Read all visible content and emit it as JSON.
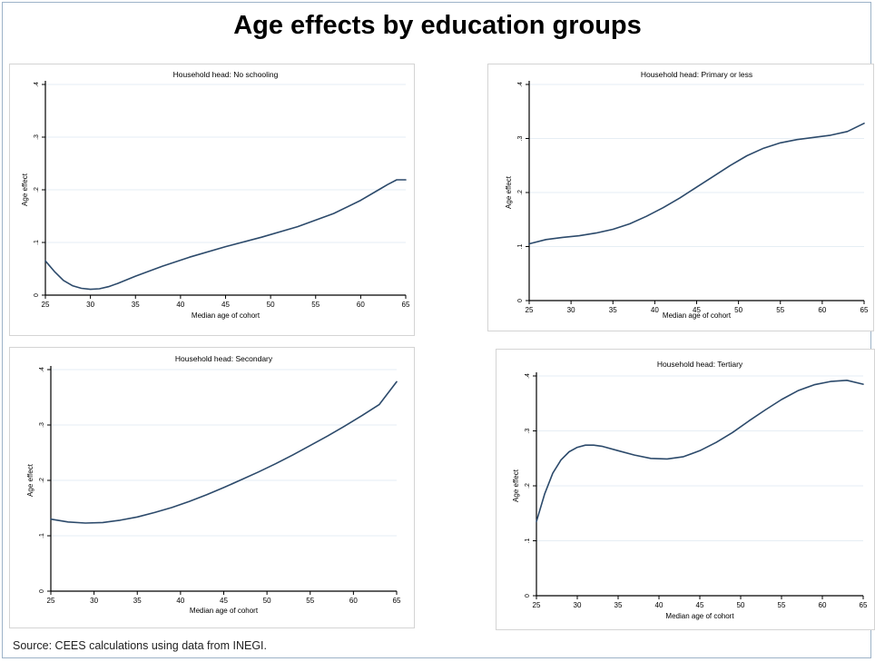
{
  "title": "Age effects by education groups",
  "source": "Source:  CEES calculations using data  from INEGI.",
  "colors": {
    "line": "#2c4a6b",
    "grid": "#e6eef4",
    "axis": "#000000"
  },
  "chart_data": [
    {
      "type": "line",
      "title": "Household head: No schooling",
      "xlabel": "Median age of cohort",
      "ylabel": "Age effect",
      "xlim": [
        25,
        65
      ],
      "ylim": [
        0,
        0.4
      ],
      "xticks": [
        "25",
        "30",
        "35",
        "40",
        "45",
        "50",
        "55",
        "60",
        "65"
      ],
      "yticks": [
        "0",
        ".1",
        ".2",
        ".3",
        ".4"
      ],
      "grid": true,
      "series": [
        {
          "x": [
            25,
            26,
            27,
            28,
            29,
            30,
            31,
            32,
            33,
            35,
            38,
            41,
            45,
            49,
            53,
            57,
            60,
            62,
            63,
            64,
            65
          ],
          "y": [
            0.065,
            0.045,
            0.028,
            0.018,
            0.013,
            0.011,
            0.012,
            0.016,
            0.022,
            0.036,
            0.055,
            0.072,
            0.092,
            0.11,
            0.13,
            0.155,
            0.18,
            0.2,
            0.21,
            0.219,
            0.219
          ]
        }
      ]
    },
    {
      "type": "line",
      "title": "Household head: Primary or less",
      "xlabel": "Median age of cohort",
      "ylabel": "Age effect",
      "xlim": [
        25,
        65
      ],
      "ylim": [
        0,
        0.4
      ],
      "xticks": [
        "25",
        "30",
        "35",
        "40",
        "45",
        "50",
        "55",
        "60",
        "65"
      ],
      "yticks": [
        "0",
        ".1",
        ".2",
        ".3",
        ".4"
      ],
      "grid": true,
      "series": [
        {
          "x": [
            25,
            27,
            29,
            31,
            33,
            35,
            37,
            39,
            41,
            43,
            45,
            47,
            49,
            51,
            53,
            55,
            57,
            59,
            61,
            63,
            65
          ],
          "y": [
            0.105,
            0.113,
            0.117,
            0.12,
            0.125,
            0.132,
            0.142,
            0.156,
            0.172,
            0.19,
            0.21,
            0.23,
            0.25,
            0.268,
            0.282,
            0.292,
            0.298,
            0.302,
            0.306,
            0.313,
            0.328
          ]
        }
      ]
    },
    {
      "type": "line",
      "title": "Household head: Secondary",
      "xlabel": "Median age of cohort",
      "ylabel": "Age effect",
      "xlim": [
        25,
        65
      ],
      "ylim": [
        0,
        0.4
      ],
      "xticks": [
        "25",
        "30",
        "35",
        "40",
        "45",
        "50",
        "55",
        "60",
        "65"
      ],
      "yticks": [
        "0",
        ".1",
        ".2",
        ".3",
        ".4"
      ],
      "grid": true,
      "series": [
        {
          "x": [
            25,
            27,
            29,
            31,
            33,
            35,
            37,
            39,
            41,
            43,
            45,
            47,
            49,
            51,
            53,
            55,
            57,
            59,
            61,
            63,
            65
          ],
          "y": [
            0.13,
            0.125,
            0.123,
            0.124,
            0.128,
            0.134,
            0.142,
            0.151,
            0.162,
            0.174,
            0.187,
            0.201,
            0.215,
            0.23,
            0.246,
            0.263,
            0.28,
            0.298,
            0.317,
            0.337,
            0.378
          ]
        }
      ]
    },
    {
      "type": "line",
      "title": "Household head: Tertiary",
      "xlabel": "Median age of cohort",
      "ylabel": "Age effect",
      "xlim": [
        25,
        65
      ],
      "ylim": [
        0,
        0.4
      ],
      "xticks": [
        "25",
        "30",
        "35",
        "40",
        "45",
        "50",
        "55",
        "60",
        "65"
      ],
      "yticks": [
        "0",
        ".1",
        ".2",
        ".3",
        ".4"
      ],
      "grid": true,
      "series": [
        {
          "x": [
            25,
            26,
            27,
            28,
            29,
            30,
            31,
            32,
            33,
            35,
            37,
            39,
            41,
            43,
            45,
            47,
            49,
            51,
            53,
            55,
            57,
            59,
            61,
            63,
            65
          ],
          "y": [
            0.135,
            0.185,
            0.223,
            0.247,
            0.262,
            0.27,
            0.274,
            0.274,
            0.272,
            0.264,
            0.256,
            0.25,
            0.249,
            0.253,
            0.264,
            0.279,
            0.297,
            0.318,
            0.338,
            0.357,
            0.373,
            0.384,
            0.39,
            0.392,
            0.385
          ]
        }
      ]
    }
  ]
}
